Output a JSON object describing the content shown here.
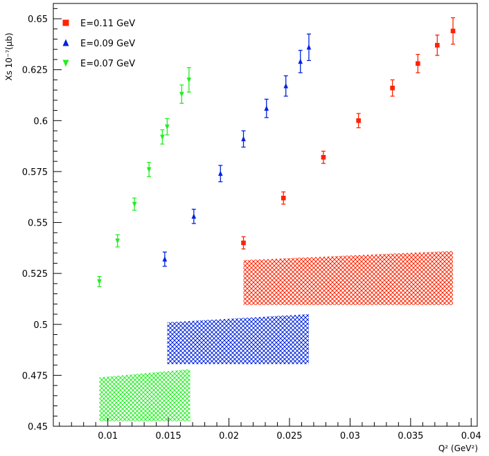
{
  "chart_data": {
    "type": "scatter",
    "ylabel": "Xs 10⁻⁷(μb)",
    "xlabel": "Q² (GeV²)",
    "xlim": [
      0.0055,
      0.0405
    ],
    "ylim": [
      0.45,
      0.6575
    ],
    "x_ticks": [
      0.01,
      0.015,
      0.02,
      0.025,
      0.03,
      0.035,
      0.04
    ],
    "x_tick_labels": [
      "0.01",
      "0.015",
      "0.02",
      "0.025",
      "0.03",
      "0.035",
      "0.04"
    ],
    "y_ticks": [
      0.45,
      0.475,
      0.5,
      0.525,
      0.55,
      0.575,
      0.6,
      0.625,
      0.65
    ],
    "y_tick_labels": [
      "0.45",
      "0.475",
      "0.5",
      "0.525",
      "0.55",
      "0.575",
      "0.6",
      "0.625",
      "0.65"
    ],
    "legend_position": "top-left",
    "series": [
      {
        "name": "E=0.11 GeV",
        "color": "#ff2200",
        "marker": "square",
        "x": [
          0.0212,
          0.0245,
          0.0278,
          0.0307,
          0.0335,
          0.0356,
          0.0372,
          0.0385
        ],
        "y": [
          0.54,
          0.562,
          0.582,
          0.6,
          0.616,
          0.628,
          0.637,
          0.644
        ],
        "err": [
          0.003,
          0.003,
          0.003,
          0.0035,
          0.004,
          0.0045,
          0.005,
          0.0065
        ],
        "band": {
          "x": [
            0.0212,
            0.0385
          ],
          "lower": [
            0.5095,
            0.5095
          ],
          "upper": [
            0.5315,
            0.536
          ]
        }
      },
      {
        "name": "E=0.09 GeV",
        "color": "#0022dd",
        "marker": "triangle-up",
        "x": [
          0.0147,
          0.0171,
          0.0193,
          0.0212,
          0.0231,
          0.0247,
          0.0259,
          0.0266
        ],
        "y": [
          0.532,
          0.553,
          0.574,
          0.591,
          0.606,
          0.617,
          0.629,
          0.636
        ],
        "err": [
          0.0035,
          0.0035,
          0.004,
          0.004,
          0.0045,
          0.005,
          0.0055,
          0.0065
        ],
        "band": {
          "x": [
            0.0149,
            0.0266
          ],
          "lower": [
            0.4805,
            0.4805
          ],
          "upper": [
            0.501,
            0.505
          ]
        }
      },
      {
        "name": "E=0.07 GeV",
        "color": "#22ee22",
        "marker": "triangle-down",
        "x": [
          0.0093,
          0.0108,
          0.0122,
          0.0134,
          0.0145,
          0.0149,
          0.0161,
          0.0167
        ],
        "y": [
          0.521,
          0.541,
          0.559,
          0.576,
          0.592,
          0.597,
          0.613,
          0.62
        ],
        "err": [
          0.0025,
          0.003,
          0.003,
          0.0035,
          0.0035,
          0.004,
          0.0045,
          0.006
        ],
        "band": {
          "x": [
            0.0093,
            0.0168
          ],
          "lower": [
            0.4525,
            0.4525
          ],
          "upper": [
            0.474,
            0.478
          ]
        }
      }
    ]
  }
}
